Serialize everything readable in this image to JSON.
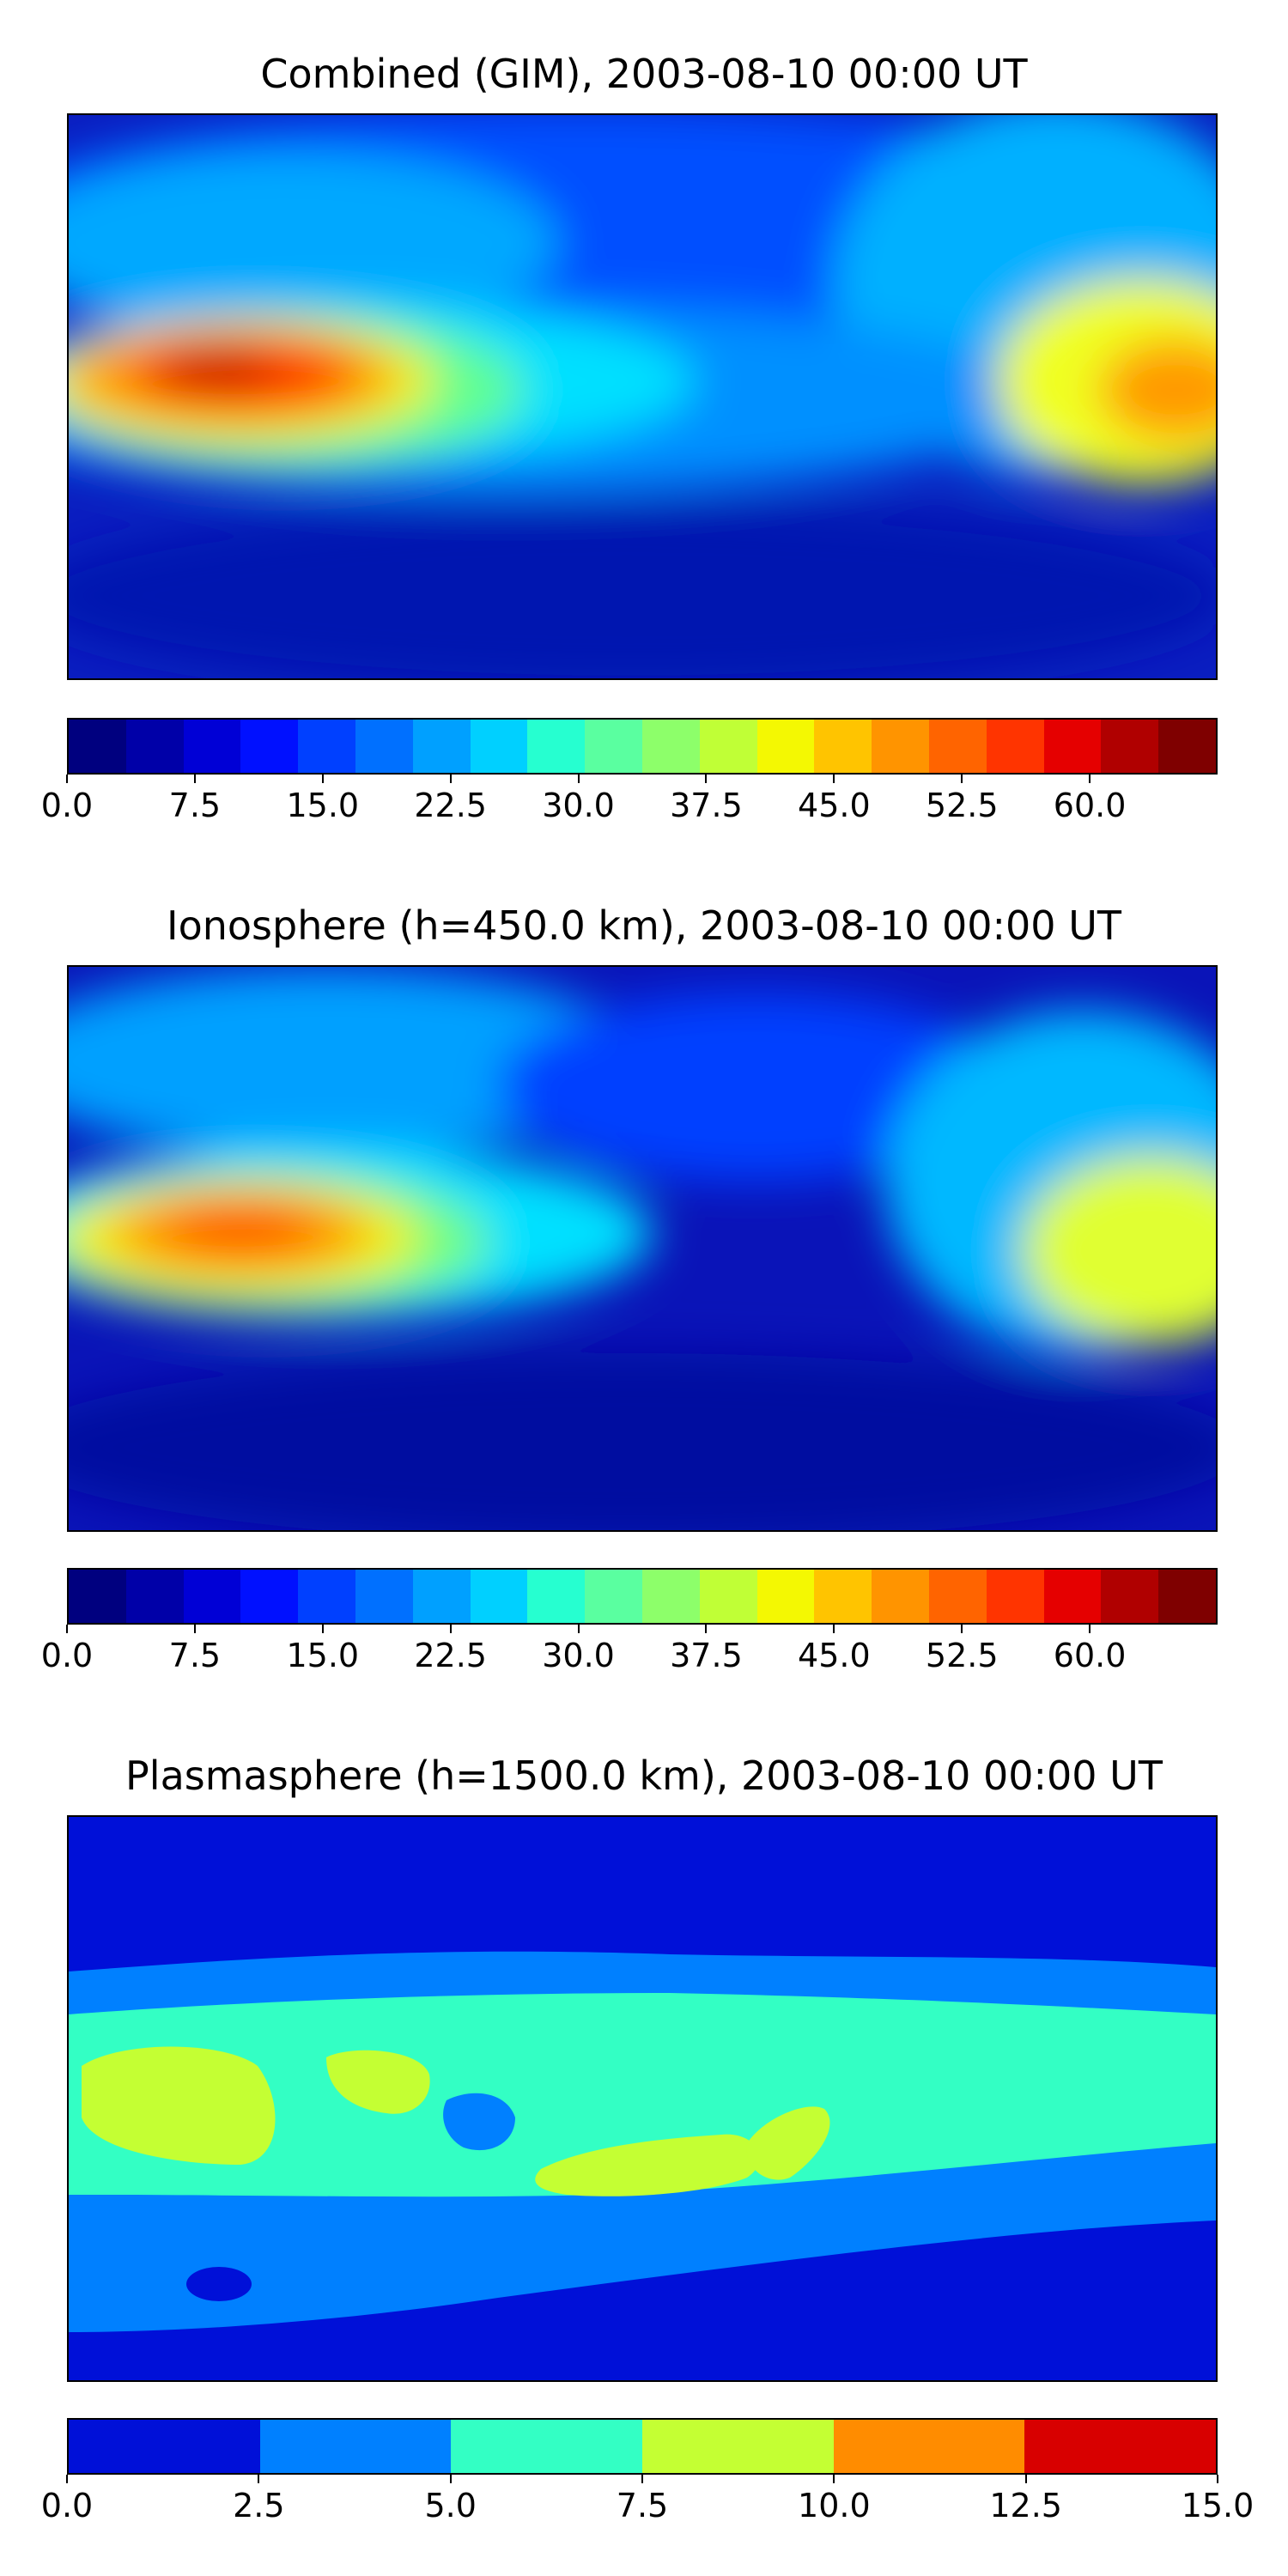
{
  "panels": [
    {
      "title": "Combined (GIM), 2003-08-10 00:00 UT",
      "colorbar": {
        "colors": [
          "#00007f",
          "#0000a8",
          "#0000d6",
          "#0010ff",
          "#0040ff",
          "#0070ff",
          "#00a0ff",
          "#00d0ff",
          "#26ffd0",
          "#5affa0",
          "#8dff6a",
          "#c0ff36",
          "#f4f802",
          "#ffc400",
          "#ff9400",
          "#ff6400",
          "#ff3400",
          "#e50000",
          "#b00000",
          "#7f0000"
        ],
        "tick_labels": [
          "0.0",
          "7.5",
          "15.0",
          "22.5",
          "30.0",
          "37.5",
          "45.0",
          "52.5",
          "60.0"
        ],
        "tick_values": [
          0,
          7.5,
          15,
          22.5,
          30,
          37.5,
          45,
          52.5,
          60
        ],
        "range": [
          0,
          67.5
        ]
      }
    },
    {
      "title": "Ionosphere  (h=450.0 km), 2003-08-10 00:00 UT",
      "colorbar": {
        "colors": [
          "#00007f",
          "#0000a8",
          "#0000d6",
          "#0010ff",
          "#0040ff",
          "#0070ff",
          "#00a0ff",
          "#00d0ff",
          "#26ffd0",
          "#5affa0",
          "#8dff6a",
          "#c0ff36",
          "#f4f802",
          "#ffc400",
          "#ff9400",
          "#ff6400",
          "#ff3400",
          "#e50000",
          "#b00000",
          "#7f0000"
        ],
        "tick_labels": [
          "0.0",
          "7.5",
          "15.0",
          "22.5",
          "30.0",
          "37.5",
          "45.0",
          "52.5",
          "60.0"
        ],
        "tick_values": [
          0,
          7.5,
          15,
          22.5,
          30,
          37.5,
          45,
          52.5,
          60
        ],
        "range": [
          0,
          67.5
        ]
      }
    },
    {
      "title": "Plasmasphere (h=1500.0 km), 2003-08-10 00:00 UT",
      "colorbar": {
        "colors": [
          "#0010d8",
          "#0080ff",
          "#33ffc4",
          "#c4ff33",
          "#ff8c00",
          "#d80000"
        ],
        "tick_labels": [
          "0.0",
          "2.5",
          "5.0",
          "7.5",
          "10.0",
          "12.5",
          "15.0"
        ],
        "tick_values": [
          0,
          2.5,
          5,
          7.5,
          10,
          12.5,
          15
        ],
        "range": [
          0,
          15
        ]
      }
    }
  ]
}
